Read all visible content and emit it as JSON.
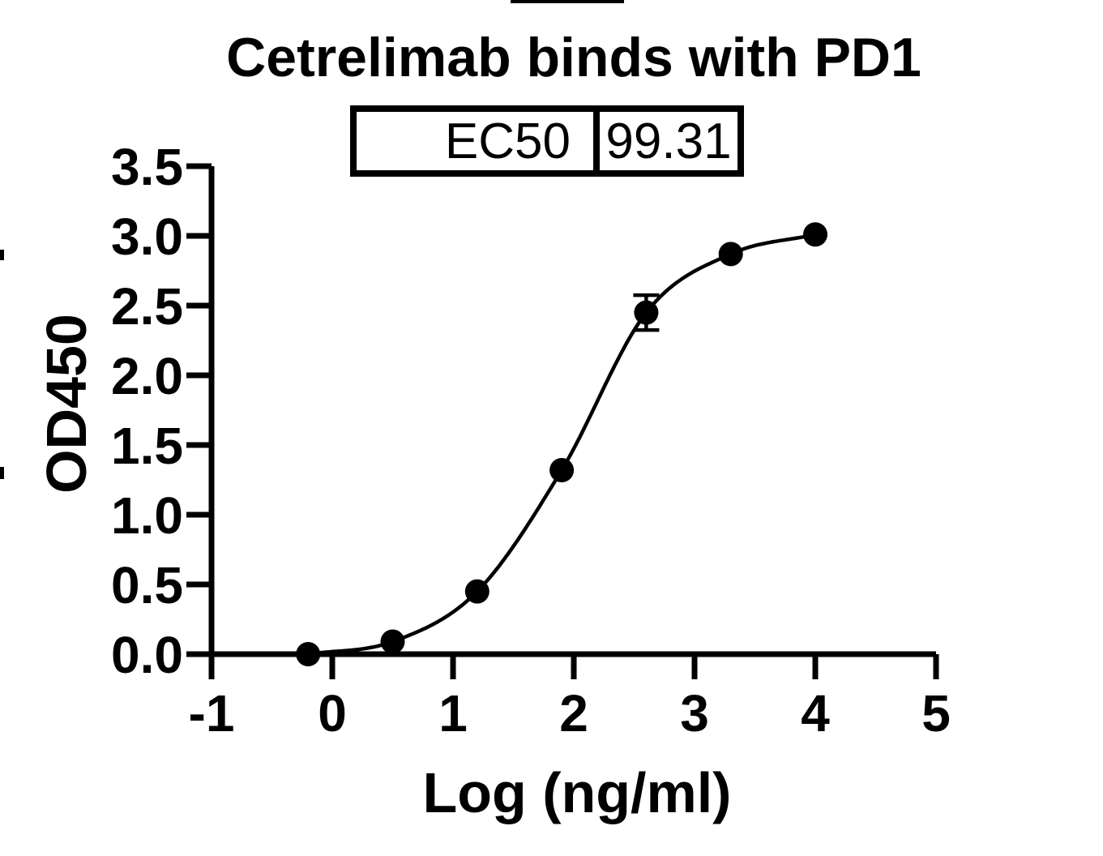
{
  "figure": {
    "title": "Cetrelimab binds with PD1",
    "ec50_label": "EC50",
    "ec50_value": "99.31"
  },
  "chart_data": {
    "type": "scatter",
    "title": "Cetrelimab binds with PD1",
    "xlabel": "Log (ng/ml)",
    "ylabel": "OD450",
    "xlim": [
      -1,
      5
    ],
    "ylim": [
      0,
      3.5
    ],
    "x_ticks": [
      -1,
      0,
      1,
      2,
      3,
      4,
      5
    ],
    "x_tick_labels": [
      "-1",
      "0",
      "1",
      "2",
      "3",
      "4",
      "5"
    ],
    "y_ticks": [
      0,
      0.5,
      1,
      1.5,
      2,
      2.5,
      3,
      3.5
    ],
    "y_tick_labels": [
      "0.0",
      "0.5",
      "1.0",
      "1.5",
      "2.0",
      "2.5",
      "3.0",
      "3.5"
    ],
    "grid": false,
    "legend": "none",
    "marker_color": "#000000",
    "line_color": "#000000",
    "background": "#ffffff",
    "series": [
      {
        "name": "Cetrelimab",
        "x": [
          -0.2,
          0.5,
          1.2,
          1.9,
          2.6,
          3.3,
          4.0
        ],
        "y": [
          0.0,
          0.09,
          0.45,
          1.32,
          2.45,
          2.87,
          3.01
        ],
        "error_y": [
          null,
          null,
          null,
          null,
          0.125,
          null,
          null
        ]
      }
    ],
    "fit": {
      "model": "sigmoidal dose-response (4PL)",
      "ec50_label": "EC50",
      "ec50": 99.31
    }
  }
}
